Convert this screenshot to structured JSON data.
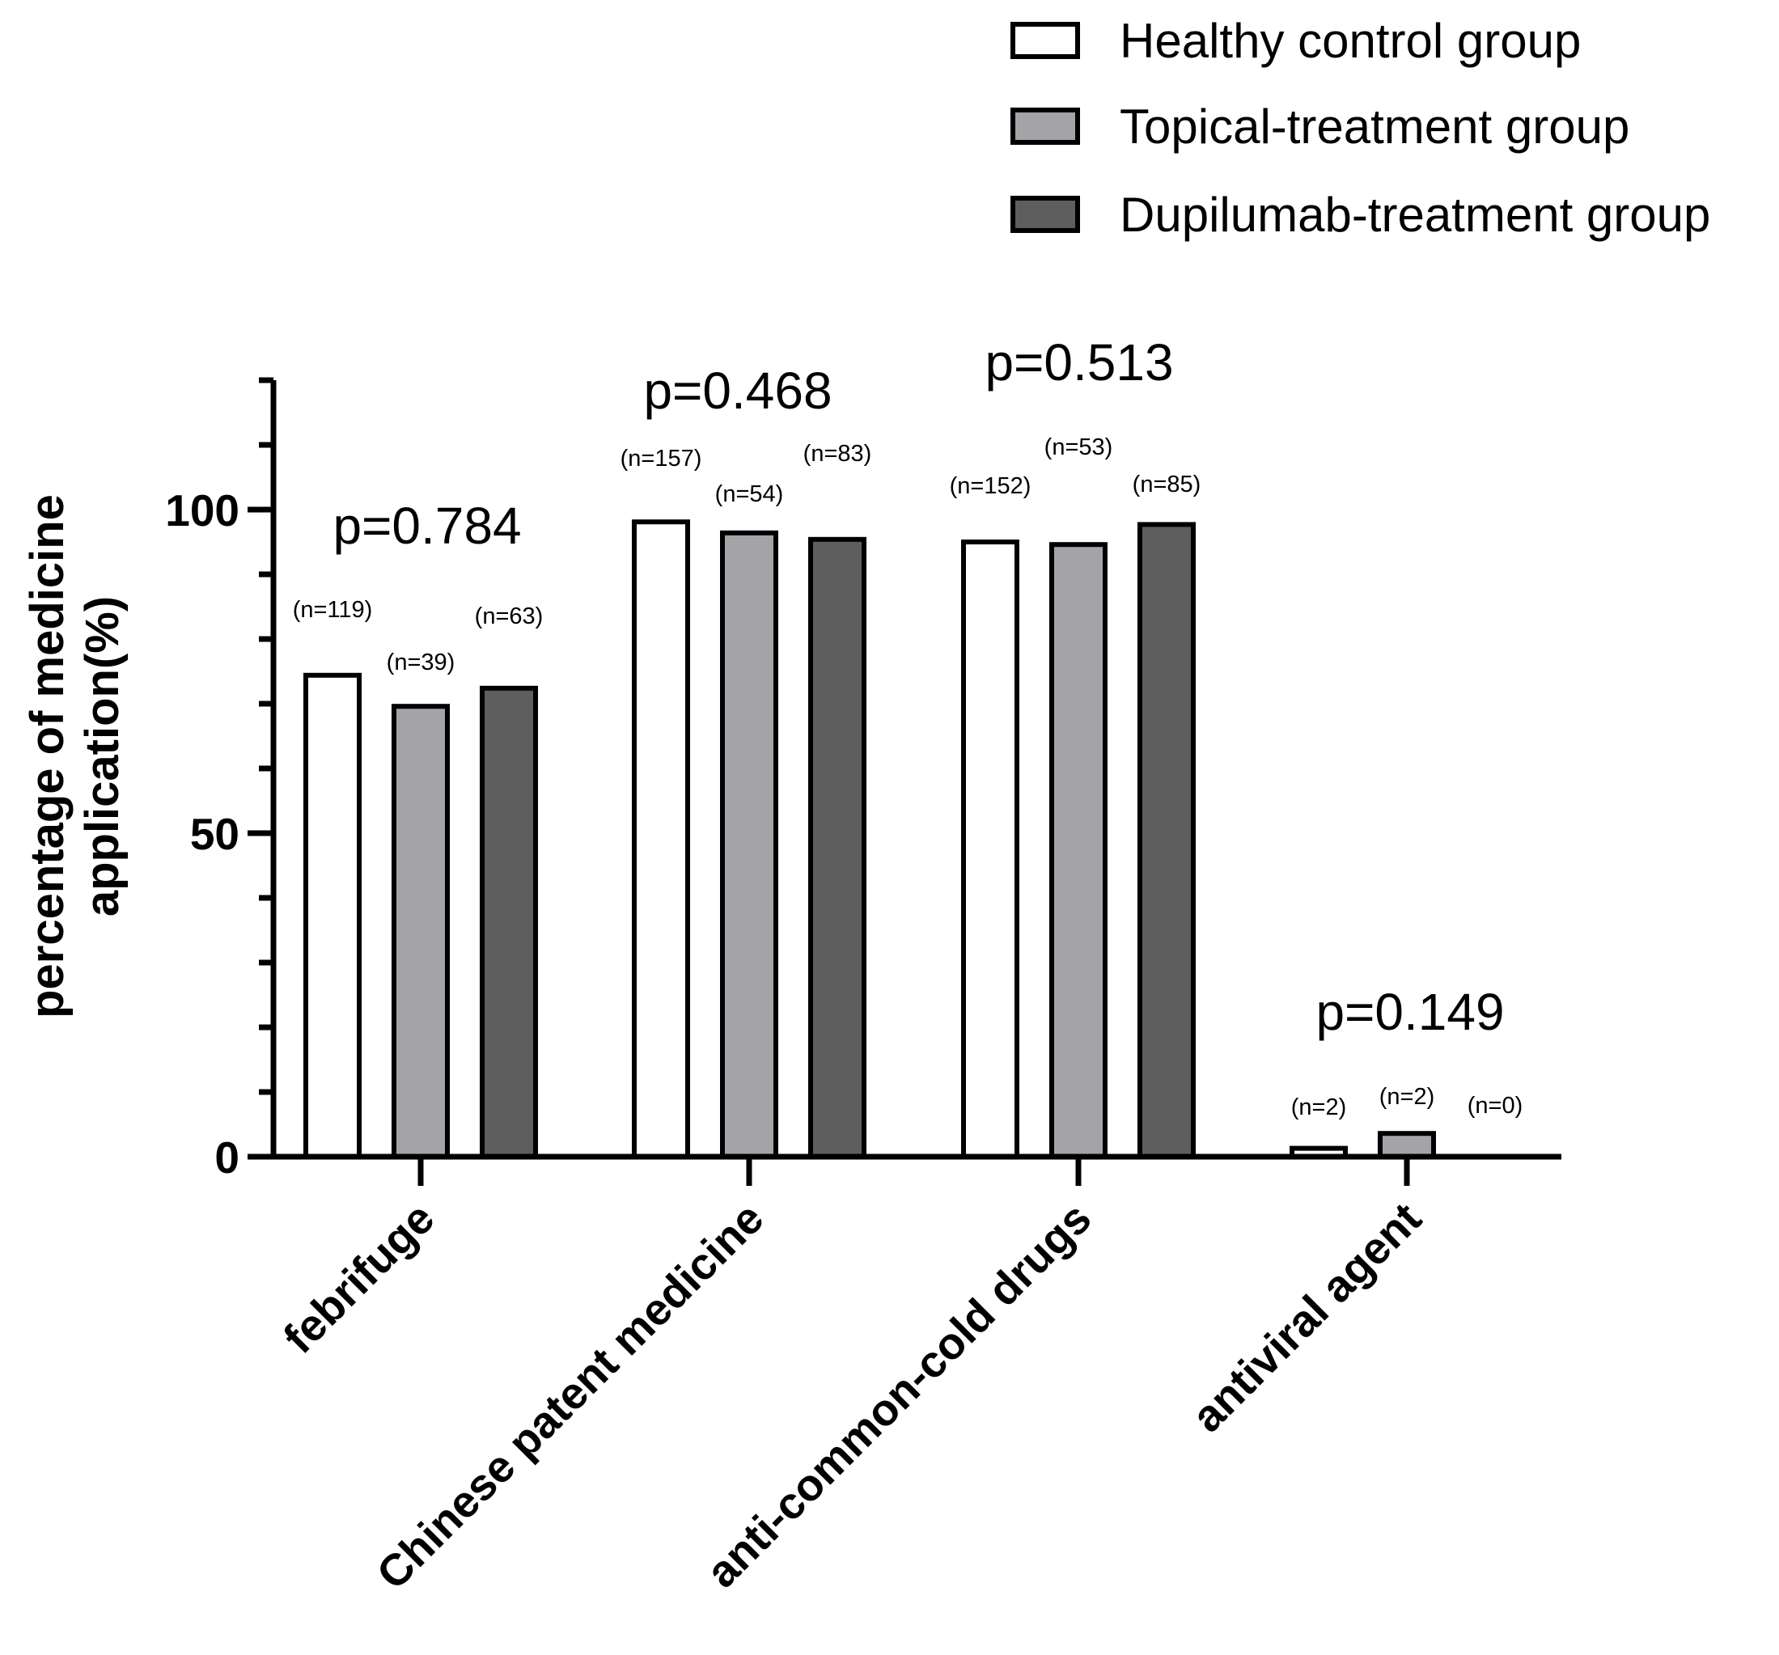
{
  "chart_data": {
    "type": "bar",
    "title": "",
    "xlabel": "",
    "ylabel": "percentage of medicine application(%)",
    "ylabel_lines": [
      "percentage of medicine",
      "application(%)"
    ],
    "ylim": [
      0,
      120
    ],
    "yticks": [
      0,
      50,
      100
    ],
    "yticks_minor_step": 10,
    "categories": [
      "febrifuge",
      "Chinese patent medicine",
      "anti-common-cold drugs",
      "antiviral agent"
    ],
    "series": [
      {
        "name": "Healthy control group",
        "color": "#ffffff",
        "values": [
          74.4,
          98.1,
          95.0,
          1.3
        ],
        "n_labels": [
          "(n=119)",
          "(n=157)",
          "(n=152)",
          "(n=2)"
        ]
      },
      {
        "name": "Topical-treatment group",
        "color": "#a3a3a8",
        "values": [
          69.6,
          96.4,
          94.6,
          3.6
        ],
        "n_labels": [
          "(n=39)",
          "(n=54)",
          "(n=53)",
          "(n=2)"
        ]
      },
      {
        "name": "Dupilumab-treatment group",
        "color": "#5e5e5e",
        "values": [
          72.4,
          95.4,
          97.7,
          0
        ],
        "n_labels": [
          "(n=63)",
          "(n=83)",
          "(n=85)",
          "(n=0)"
        ]
      }
    ],
    "p_values": [
      "p=0.784",
      "p=0.468",
      "p=0.513",
      "p=0.149"
    ],
    "legend_position": "top-right",
    "grid": false
  }
}
